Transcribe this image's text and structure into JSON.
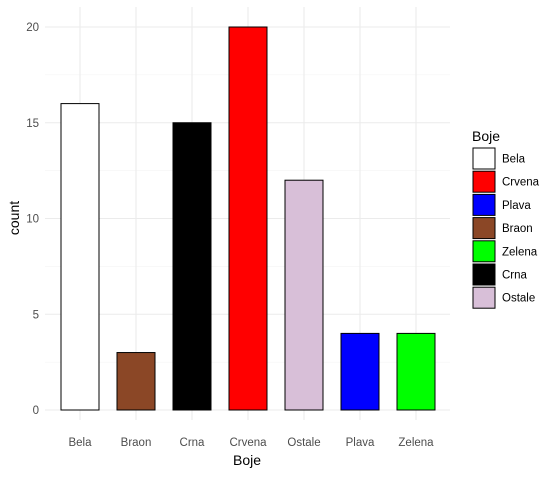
{
  "chart_data": {
    "type": "bar",
    "categories": [
      "Bela",
      "Braon",
      "Crna",
      "Crvena",
      "Ostale",
      "Plava",
      "Zelena"
    ],
    "values": [
      16,
      3,
      15,
      20,
      12,
      4,
      4
    ],
    "colors": [
      "#ffffff",
      "#8b4726",
      "#000000",
      "#ff0000",
      "#d8bfd8",
      "#0000ff",
      "#00ff00"
    ],
    "xlabel": "Boje",
    "ylabel": "count",
    "ylim": [
      0,
      21
    ],
    "yticks": [
      0,
      5,
      10,
      15,
      20
    ],
    "grid": true,
    "legend": {
      "title": "Boje",
      "placement": "right",
      "entries": [
        {
          "label": "Bela",
          "color": "#ffffff"
        },
        {
          "label": "Crvena",
          "color": "#ff0000"
        },
        {
          "label": "Plava",
          "color": "#0000ff"
        },
        {
          "label": "Braon",
          "color": "#8b4726"
        },
        {
          "label": "Zelena",
          "color": "#00ff00"
        },
        {
          "label": "Crna",
          "color": "#000000"
        },
        {
          "label": "Ostale",
          "color": "#d8bfd8"
        }
      ]
    }
  }
}
